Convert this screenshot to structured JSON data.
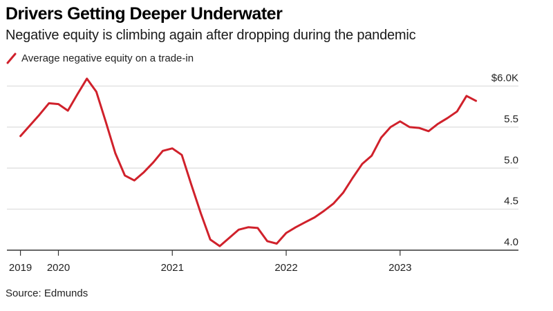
{
  "title": "Drivers Getting Deeper Underwater",
  "subtitle": "Negative equity is climbing again after dropping during the pandemic",
  "source": "Source: Edmunds",
  "colors": {
    "line": "#d0212b",
    "grid": "#e2e2e2",
    "axis": "#333333"
  },
  "chart_data": {
    "type": "line",
    "title": "Drivers Getting Deeper Underwater",
    "subtitle": "Negative equity is climbing again after dropping during the pandemic",
    "xlabel": "",
    "ylabel": "",
    "ylim": [
      4.0,
      6.0
    ],
    "y_ticks": [
      4.0,
      4.5,
      5.0,
      5.5,
      6.0
    ],
    "y_tick_labels": [
      "4.0",
      "4.5",
      "5.0",
      "5.5",
      "$6.0K"
    ],
    "y_axis_side": "right",
    "x_ticks": [
      "2019-09",
      "2020-01",
      "2021-01",
      "2022-01",
      "2023-01"
    ],
    "x_tick_labels": [
      "2019",
      "2020",
      "2021",
      "2022",
      "2023"
    ],
    "grid": true,
    "legend_position": "top-left",
    "series": [
      {
        "name": "Average negative equity on a trade-in",
        "unit": "thousand USD",
        "x": [
          "2019-09",
          "2019-10",
          "2019-11",
          "2019-12",
          "2020-01",
          "2020-02",
          "2020-03",
          "2020-04",
          "2020-05",
          "2020-06",
          "2020-07",
          "2020-08",
          "2020-09",
          "2020-10",
          "2020-11",
          "2020-12",
          "2021-01",
          "2021-02",
          "2021-03",
          "2021-04",
          "2021-05",
          "2021-06",
          "2021-07",
          "2021-08",
          "2021-09",
          "2021-10",
          "2021-11",
          "2021-12",
          "2022-01",
          "2022-02",
          "2022-03",
          "2022-04",
          "2022-05",
          "2022-06",
          "2022-07",
          "2022-08",
          "2022-09",
          "2022-10",
          "2022-11",
          "2022-12",
          "2023-01",
          "2023-02",
          "2023-03",
          "2023-04",
          "2023-05",
          "2023-06",
          "2023-07",
          "2023-08",
          "2023-09"
        ],
        "values": [
          5.39,
          5.52,
          5.65,
          5.79,
          5.78,
          5.7,
          5.9,
          6.09,
          5.93,
          5.56,
          5.18,
          4.91,
          4.85,
          4.95,
          5.07,
          5.21,
          5.24,
          5.16,
          4.8,
          4.45,
          4.13,
          4.05,
          4.15,
          4.25,
          4.28,
          4.27,
          4.11,
          4.08,
          4.21,
          4.28,
          4.34,
          4.4,
          4.48,
          4.57,
          4.7,
          4.88,
          5.05,
          5.15,
          5.37,
          5.5,
          5.57,
          5.5,
          5.49,
          5.45,
          5.54,
          5.61,
          5.69,
          5.88,
          5.82
        ]
      }
    ]
  }
}
